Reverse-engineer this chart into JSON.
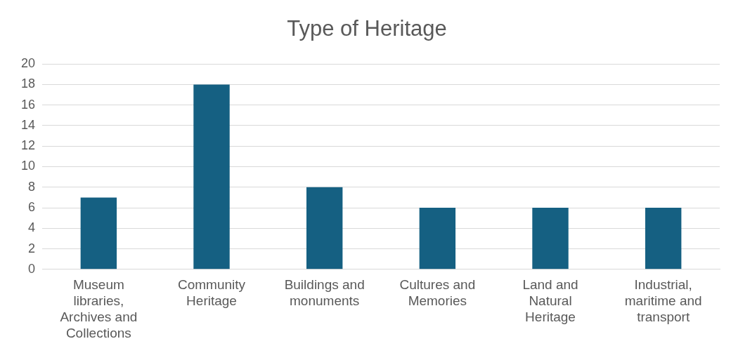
{
  "chart_data": {
    "type": "bar",
    "title": "Type of Heritage",
    "categories": [
      "Museum libraries, Archives and Collections",
      "Community Heritage",
      "Buildings and monuments",
      "Cultures and Memories",
      "Land and Natural Heritage",
      "Industrial, maritime and transport"
    ],
    "values": [
      7,
      18,
      8,
      6,
      6,
      6
    ],
    "color": "#156082",
    "ylim": [
      0,
      20
    ],
    "yticks": [
      0,
      2,
      4,
      6,
      8,
      10,
      12,
      14,
      16,
      18,
      20
    ],
    "grid": "y",
    "legend": false
  }
}
